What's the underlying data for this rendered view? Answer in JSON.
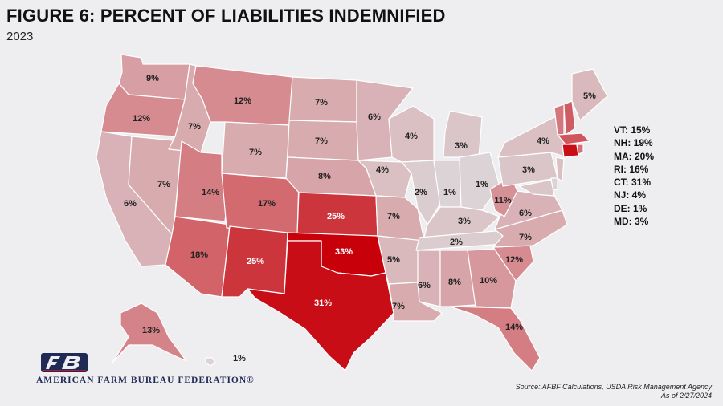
{
  "title": "FIGURE 6: PERCENT OF LIABILITIES INDEMNIFIED",
  "subtitle": "2023",
  "colors": {
    "low": "#dcdadc",
    "high": "#c8000a",
    "background": "#eeedf0",
    "logo_navy": "#1f2b55"
  },
  "states": {
    "WA": "9%",
    "OR": "12%",
    "CA": "6%",
    "NV": "7%",
    "ID": "7%",
    "MT": "12%",
    "WY": "7%",
    "UT": "14%",
    "AZ": "18%",
    "CO": "17%",
    "NM": "25%",
    "ND": "7%",
    "SD": "7%",
    "NE": "8%",
    "KS": "25%",
    "OK": "33%",
    "TX": "31%",
    "MN": "6%",
    "IA": "4%",
    "MO": "7%",
    "AR": "5%",
    "LA": "7%",
    "WI": "4%",
    "IL": "2%",
    "MI": "3%",
    "IN": "1%",
    "OH": "1%",
    "KY": "3%",
    "TN": "2%",
    "MS": "6%",
    "AL": "8%",
    "GA": "10%",
    "FL": "14%",
    "SC": "12%",
    "NC": "7%",
    "VA": "6%",
    "WV": "11%",
    "PA": "3%",
    "NY": "4%",
    "ME": "5%",
    "AK": "13%",
    "HI": "1%"
  },
  "legend": [
    {
      "label": "VT: 15%"
    },
    {
      "label": "NH: 19%"
    },
    {
      "label": "MA: 20%"
    },
    {
      "label": "RI: 16%"
    },
    {
      "label": "CT: 31%"
    },
    {
      "label": "NJ: 4%"
    },
    {
      "label": "DE: 1%"
    },
    {
      "label": "MD: 3%"
    }
  ],
  "logo": {
    "mark": "FB",
    "text": "AMERICAN FARM BUREAU FEDERATION®"
  },
  "source": {
    "line1": "Source: AFBF Calculations, USDA Risk Management Agency",
    "line2": "As of 2/27/2024"
  }
}
